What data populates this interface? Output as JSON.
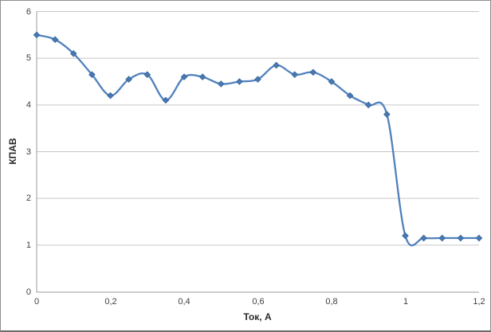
{
  "chart_data": {
    "type": "line",
    "title": "",
    "xlabel": "Ток, А",
    "ylabel": "КПАВ",
    "xlim": [
      0,
      1.2
    ],
    "ylim": [
      0,
      6
    ],
    "grid": "horizontal",
    "legend": "none",
    "smoothed": true,
    "marker": "diamond",
    "x": [
      0,
      0.05,
      0.1,
      0.15,
      0.2,
      0.25,
      0.3,
      0.35,
      0.4,
      0.45,
      0.5,
      0.55,
      0.6,
      0.65,
      0.7,
      0.75,
      0.8,
      0.85,
      0.9,
      0.95,
      1.0,
      1.05,
      1.1,
      1.15,
      1.2
    ],
    "series": [
      {
        "name": "КПАВ",
        "values": [
          5.5,
          5.4,
          5.1,
          4.65,
          4.2,
          4.55,
          4.65,
          4.1,
          4.6,
          4.6,
          4.45,
          4.5,
          4.55,
          4.85,
          4.65,
          4.7,
          4.5,
          4.2,
          4.0,
          3.8,
          1.2,
          1.15,
          1.15,
          1.15,
          1.15
        ]
      }
    ],
    "x_ticks": [
      {
        "value": 0,
        "label": "0"
      },
      {
        "value": 0.2,
        "label": "0,2"
      },
      {
        "value": 0.4,
        "label": "0,4"
      },
      {
        "value": 0.6,
        "label": "0,6"
      },
      {
        "value": 0.8,
        "label": "0,8"
      },
      {
        "value": 1,
        "label": "1"
      },
      {
        "value": 1.2,
        "label": "1,2"
      }
    ],
    "y_ticks": [
      {
        "value": 0,
        "label": "0"
      },
      {
        "value": 1,
        "label": "1"
      },
      {
        "value": 2,
        "label": "2"
      },
      {
        "value": 3,
        "label": "3"
      },
      {
        "value": 4,
        "label": "4"
      },
      {
        "value": 5,
        "label": "5"
      },
      {
        "value": 6,
        "label": "6"
      }
    ],
    "colors": {
      "line": "#4f81bd",
      "marker_fill": "#4a7ab5",
      "marker_edge": "#38679e",
      "gridline": "#c6c6c6",
      "axis_line": "#9b9b9b",
      "tick_label": "#3f3f3f",
      "axis_title": "#2b2b2b",
      "background": "#ffffff",
      "frame_border": "#8f8f8f"
    }
  }
}
